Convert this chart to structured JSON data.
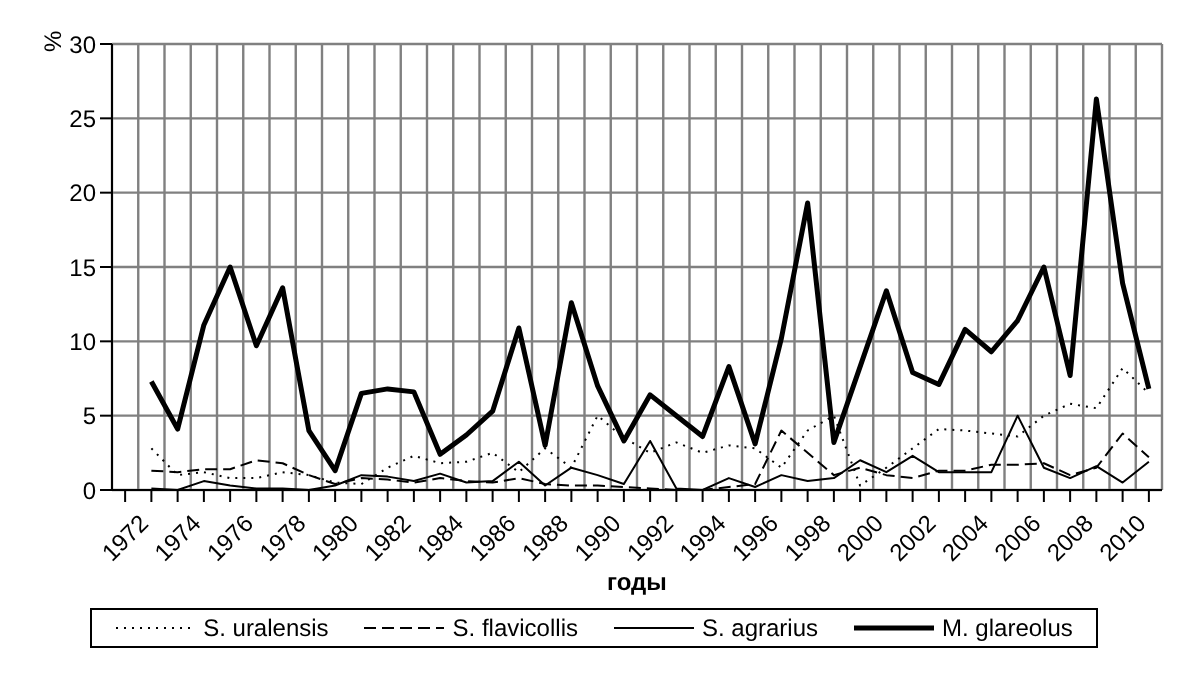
{
  "chart_data": {
    "type": "line",
    "ylabel": "%",
    "xlabel": "годы",
    "categories": [
      "1972",
      null,
      "1974",
      null,
      "1976",
      null,
      "1978",
      null,
      "1980",
      null,
      "1982",
      null,
      "1984",
      null,
      "1986",
      null,
      "1988",
      null,
      "1990",
      null,
      "1992",
      null,
      "1994",
      null,
      "1996",
      null,
      "1998",
      null,
      "2000",
      null,
      "2002",
      null,
      "2004",
      null,
      "2006",
      null,
      "2008",
      null,
      "2010",
      null
    ],
    "series": [
      {
        "name": "S. uralensis",
        "color": "#000000",
        "line_style": "dotted",
        "values": [
          null,
          2.8,
          1.0,
          1.2,
          0.8,
          0.8,
          1.2,
          1.0,
          0.5,
          0.4,
          1.5,
          2.3,
          1.8,
          1.9,
          2.5,
          1.2,
          2.8,
          1.5,
          5.0,
          3.5,
          2.5,
          3.2,
          2.5,
          3.0,
          2.8,
          1.5,
          4.0,
          5.0,
          0.3,
          1.5,
          2.8,
          4.1,
          4.0,
          3.8,
          3.6,
          5.0,
          5.8,
          5.5,
          8.2,
          6.5
        ]
      },
      {
        "name": "S. flavicollis",
        "color": "#000000",
        "line_style": "dashed",
        "values": [
          null,
          1.3,
          1.2,
          1.4,
          1.4,
          2.0,
          1.8,
          1.0,
          0.4,
          0.8,
          0.7,
          0.5,
          0.8,
          0.6,
          0.5,
          0.8,
          0.4,
          0.3,
          0.3,
          0.2,
          0.1,
          0.0,
          0.0,
          0.2,
          0.4,
          4.0,
          2.5,
          1.0,
          1.5,
          1.0,
          0.8,
          1.3,
          1.3,
          1.7,
          1.7,
          1.8,
          1.0,
          1.5,
          3.8,
          2.2
        ]
      },
      {
        "name": "S. agrarius",
        "color": "#000000",
        "line_style": "solid",
        "values": [
          null,
          0.1,
          0.0,
          0.6,
          0.3,
          0.1,
          0.1,
          0.0,
          0.3,
          1.0,
          0.9,
          0.6,
          1.1,
          0.5,
          0.6,
          1.9,
          0.3,
          1.5,
          1.0,
          0.4,
          3.3,
          0.1,
          0.0,
          0.8,
          0.2,
          1.0,
          0.6,
          0.8,
          2.0,
          1.2,
          2.3,
          1.2,
          1.2,
          1.2,
          5.0,
          1.5,
          0.8,
          1.6,
          0.5,
          1.9
        ]
      },
      {
        "name": "M. glareolus",
        "color": "#000000",
        "line_style": "solid",
        "values": [
          null,
          7.3,
          4.1,
          11.1,
          15.0,
          9.7,
          13.6,
          4.0,
          1.3,
          6.5,
          6.8,
          6.6,
          2.4,
          3.7,
          5.3,
          10.9,
          3.0,
          12.6,
          7.0,
          3.3,
          6.4,
          5.0,
          3.6,
          8.3,
          3.1,
          10.2,
          19.3,
          3.2,
          8.3,
          13.4,
          7.9,
          7.1,
          10.8,
          9.3,
          11.4,
          15.0,
          7.7,
          26.3,
          13.9,
          6.8
        ]
      }
    ],
    "ylim": [
      0,
      30
    ],
    "yticks": [
      0,
      5,
      10,
      15,
      20,
      25,
      30
    ],
    "grid": true,
    "legend": "bottom"
  }
}
